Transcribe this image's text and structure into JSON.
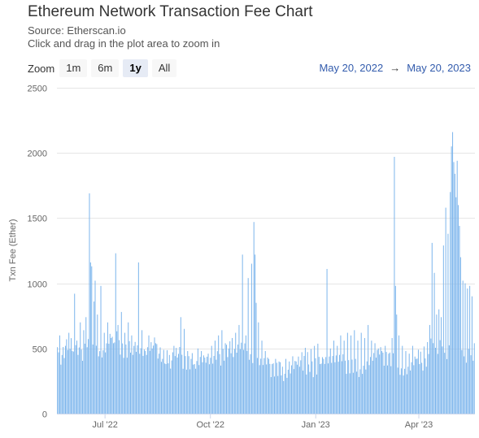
{
  "header": {
    "title": "Ethereum Network Transaction Fee Chart",
    "source": "Source: Etherscan.io",
    "hint": "Click and drag in the plot area to zoom in"
  },
  "zoom": {
    "label": "Zoom",
    "buttons": [
      "1m",
      "6m",
      "1y",
      "All"
    ],
    "selected": "1y"
  },
  "range": {
    "from": "May 20, 2022",
    "arrow": "→",
    "to": "May 20, 2023"
  },
  "colors": {
    "bar": "#7cb5ec",
    "grid": "#e6e6e6",
    "range_link": "#335cad"
  },
  "chart_data": {
    "type": "bar",
    "ylabel": "Txn Fee (Ether)",
    "ylim": [
      0,
      2500
    ],
    "yticks": [
      0,
      500,
      1000,
      1500,
      2000,
      2500
    ],
    "xlim": [
      "2022-05-20",
      "2023-05-20"
    ],
    "xticks": [
      {
        "date": "2022-07-01",
        "label": "Jul '22"
      },
      {
        "date": "2022-10-01",
        "label": "Oct '22"
      },
      {
        "date": "2023-01-01",
        "label": "Jan '23"
      },
      {
        "date": "2023-04-01",
        "label": "Apr '23"
      }
    ],
    "grid": true,
    "legend": false,
    "series": [
      {
        "points": [
          [
            "2022-05-20",
            510
          ],
          [
            "2022-05-22",
            600
          ],
          [
            "2022-05-24",
            450
          ],
          [
            "2022-05-27",
            520
          ],
          [
            "2022-05-30",
            620
          ],
          [
            "2022-06-02",
            480
          ],
          [
            "2022-06-04",
            920
          ],
          [
            "2022-06-06",
            560
          ],
          [
            "2022-06-09",
            700
          ],
          [
            "2022-06-12",
            640
          ],
          [
            "2022-06-14",
            740
          ],
          [
            "2022-06-17",
            1690
          ],
          [
            "2022-06-18",
            1160
          ],
          [
            "2022-06-19",
            1130
          ],
          [
            "2022-06-21",
            860
          ],
          [
            "2022-06-22",
            1020
          ],
          [
            "2022-06-24",
            760
          ],
          [
            "2022-06-27",
            980
          ],
          [
            "2022-06-30",
            620
          ],
          [
            "2022-07-03",
            700
          ],
          [
            "2022-07-06",
            580
          ],
          [
            "2022-07-08",
            540
          ],
          [
            "2022-07-10",
            1230
          ],
          [
            "2022-07-12",
            680
          ],
          [
            "2022-07-15",
            780
          ],
          [
            "2022-07-18",
            620
          ],
          [
            "2022-07-21",
            700
          ],
          [
            "2022-07-24",
            600
          ],
          [
            "2022-07-27",
            550
          ],
          [
            "2022-07-30",
            1160
          ],
          [
            "2022-08-02",
            640
          ],
          [
            "2022-08-05",
            480
          ],
          [
            "2022-08-08",
            600
          ],
          [
            "2022-08-11",
            500
          ],
          [
            "2022-08-14",
            540
          ],
          [
            "2022-08-17",
            460
          ],
          [
            "2022-08-20",
            420
          ],
          [
            "2022-08-23",
            380
          ],
          [
            "2022-08-26",
            450
          ],
          [
            "2022-08-30",
            520
          ],
          [
            "2022-09-02",
            430
          ],
          [
            "2022-09-05",
            740
          ],
          [
            "2022-09-08",
            650
          ],
          [
            "2022-09-11",
            480
          ],
          [
            "2022-09-14",
            420
          ],
          [
            "2022-09-17",
            380
          ],
          [
            "2022-09-20",
            500
          ],
          [
            "2022-09-23",
            480
          ],
          [
            "2022-09-26",
            430
          ],
          [
            "2022-09-29",
            460
          ],
          [
            "2022-10-02",
            520
          ],
          [
            "2022-10-05",
            560
          ],
          [
            "2022-10-08",
            600
          ],
          [
            "2022-10-11",
            640
          ],
          [
            "2022-10-14",
            540
          ],
          [
            "2022-10-17",
            500
          ],
          [
            "2022-10-20",
            580
          ],
          [
            "2022-10-23",
            620
          ],
          [
            "2022-10-26",
            680
          ],
          [
            "2022-10-29",
            1220
          ],
          [
            "2022-11-01",
            600
          ],
          [
            "2022-11-03",
            1040
          ],
          [
            "2022-11-06",
            1150
          ],
          [
            "2022-11-08",
            1470
          ],
          [
            "2022-11-09",
            1220
          ],
          [
            "2022-11-10",
            850
          ],
          [
            "2022-11-12",
            700
          ],
          [
            "2022-11-15",
            560
          ],
          [
            "2022-11-18",
            480
          ],
          [
            "2022-11-21",
            420
          ],
          [
            "2022-11-24",
            380
          ],
          [
            "2022-11-27",
            420
          ],
          [
            "2022-11-30",
            400
          ],
          [
            "2022-12-03",
            360
          ],
          [
            "2022-12-06",
            420
          ],
          [
            "2022-12-09",
            400
          ],
          [
            "2022-12-12",
            440
          ],
          [
            "2022-12-15",
            400
          ],
          [
            "2022-12-18",
            360
          ],
          [
            "2022-12-21",
            330
          ],
          [
            "2022-12-24",
            300
          ],
          [
            "2022-12-27",
            320
          ],
          [
            "2022-12-30",
            280
          ],
          [
            "2023-01-02",
            300
          ],
          [
            "2023-01-05",
            380
          ],
          [
            "2023-01-08",
            420
          ],
          [
            "2023-01-11",
            1110
          ],
          [
            "2023-01-14",
            500
          ],
          [
            "2023-01-17",
            560
          ],
          [
            "2023-01-20",
            520
          ],
          [
            "2023-01-23",
            600
          ],
          [
            "2023-01-26",
            560
          ],
          [
            "2023-01-29",
            620
          ],
          [
            "2023-02-01",
            600
          ],
          [
            "2023-02-04",
            640
          ],
          [
            "2023-02-07",
            560
          ],
          [
            "2023-02-10",
            620
          ],
          [
            "2023-02-13",
            580
          ],
          [
            "2023-02-16",
            680
          ],
          [
            "2023-02-19",
            560
          ],
          [
            "2023-02-22",
            540
          ],
          [
            "2023-02-25",
            500
          ],
          [
            "2023-02-28",
            480
          ],
          [
            "2023-03-03",
            520
          ],
          [
            "2023-03-06",
            460
          ],
          [
            "2023-03-09",
            580
          ],
          [
            "2023-03-11",
            1970
          ],
          [
            "2023-03-12",
            980
          ],
          [
            "2023-03-13",
            760
          ],
          [
            "2023-03-15",
            600
          ],
          [
            "2023-03-18",
            520
          ],
          [
            "2023-03-21",
            480
          ],
          [
            "2023-03-24",
            460
          ],
          [
            "2023-03-27",
            520
          ],
          [
            "2023-03-30",
            420
          ],
          [
            "2023-04-02",
            380
          ],
          [
            "2023-04-05",
            330
          ],
          [
            "2023-04-08",
            360
          ],
          [
            "2023-04-11",
            680
          ],
          [
            "2023-04-13",
            1310
          ],
          [
            "2023-04-15",
            1080
          ],
          [
            "2023-04-17",
            760
          ],
          [
            "2023-04-19",
            800
          ],
          [
            "2023-04-21",
            740
          ],
          [
            "2023-04-23",
            1290
          ],
          [
            "2023-04-25",
            1580
          ],
          [
            "2023-04-27",
            1380
          ],
          [
            "2023-04-29",
            1700
          ],
          [
            "2023-04-30",
            2050
          ],
          [
            "2023-05-01",
            2160
          ],
          [
            "2023-05-02",
            1930
          ],
          [
            "2023-05-03",
            1840
          ],
          [
            "2023-05-04",
            1660
          ],
          [
            "2023-05-05",
            1940
          ],
          [
            "2023-05-06",
            1600
          ],
          [
            "2023-05-07",
            1440
          ],
          [
            "2023-05-08",
            1200
          ],
          [
            "2023-05-10",
            1020
          ],
          [
            "2023-05-12",
            1000
          ],
          [
            "2023-05-14",
            960
          ],
          [
            "2023-05-16",
            980
          ],
          [
            "2023-05-18",
            900
          ],
          [
            "2023-05-20",
            540
          ]
        ],
        "base": [
          510,
          430,
          470,
          520,
          600,
          480,
          430,
          470,
          500,
          520,
          560,
          540,
          480,
          470,
          510,
          570,
          600,
          560,
          520,
          480,
          470,
          500,
          540,
          520,
          480,
          460,
          470,
          500,
          520,
          480,
          440,
          420,
          410,
          430,
          450,
          440,
          410,
          390,
          380,
          410,
          420,
          440,
          430,
          400,
          380,
          390,
          420,
          450,
          470,
          480,
          500,
          520,
          540,
          520,
          500,
          460,
          420,
          400,
          380,
          370,
          360,
          350,
          340,
          330,
          320,
          320,
          340,
          360,
          380,
          400,
          420,
          440,
          450,
          460,
          470,
          460,
          440,
          430,
          420,
          410,
          400,
          390,
          380,
          370,
          360,
          350,
          350,
          360,
          380,
          400,
          420,
          430,
          440,
          440,
          430,
          410,
          390,
          370,
          350,
          330,
          330,
          350,
          380,
          420,
          460,
          480,
          500,
          510,
          520,
          510,
          500,
          490,
          480,
          470,
          460,
          450,
          440,
          430,
          420,
          420
        ]
      }
    ]
  }
}
